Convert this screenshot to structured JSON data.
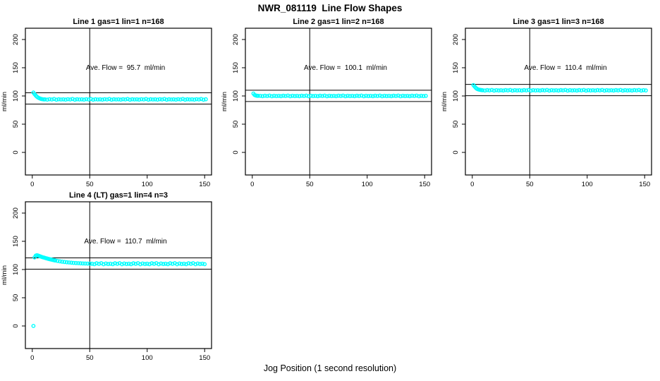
{
  "title": "NWR_081119  Line Flow Shapes",
  "xlabel": "Jog Position (1 second resolution)",
  "colors": {
    "marker": "#00FFFF",
    "axis": "#000000",
    "background": "#FFFFFF"
  },
  "chart_data": [
    {
      "type": "scatter",
      "title": "Line 1 gas=1 lin=1 n=168",
      "annotation": "Ave. Flow =  95.7  ml/min",
      "ave_flow_ml_min": 95.7,
      "ylabel": "ml/min",
      "xlim": [
        -6,
        156
      ],
      "ylim": [
        -40,
        220
      ],
      "xticks": [
        0,
        50,
        100,
        150
      ],
      "yticks": [
        0,
        50,
        100,
        150,
        200
      ],
      "vline_x": 50,
      "hlines": [
        105.7,
        85.7
      ],
      "grid": false,
      "points": [
        [
          1,
          106.0
        ],
        [
          2,
          103.2
        ],
        [
          3,
          100.8
        ],
        [
          4,
          98.8
        ],
        [
          5,
          97.2
        ],
        [
          6,
          96.1
        ],
        [
          7,
          95.2
        ],
        [
          8,
          94.6
        ],
        [
          9,
          94.2
        ],
        [
          10,
          93.9
        ],
        [
          11,
          94.0
        ],
        [
          13,
          93.5
        ],
        [
          15,
          94.3
        ],
        [
          17,
          93.8
        ],
        [
          19,
          94.6
        ],
        [
          21,
          93.4
        ],
        [
          23,
          94.1
        ],
        [
          25,
          93.7
        ],
        [
          27,
          94.0
        ],
        [
          29,
          93.5
        ],
        [
          31,
          94.3
        ],
        [
          33,
          93.8
        ],
        [
          35,
          94.6
        ],
        [
          37,
          93.4
        ],
        [
          39,
          94.1
        ],
        [
          41,
          93.7
        ],
        [
          43,
          94.0
        ],
        [
          45,
          93.5
        ],
        [
          47,
          94.3
        ],
        [
          49,
          93.8
        ],
        [
          51,
          94.6
        ],
        [
          53,
          93.4
        ],
        [
          55,
          94.1
        ],
        [
          57,
          93.7
        ],
        [
          59,
          94.0
        ],
        [
          61,
          93.5
        ],
        [
          63,
          94.3
        ],
        [
          65,
          93.8
        ],
        [
          67,
          94.6
        ],
        [
          69,
          93.4
        ],
        [
          71,
          94.1
        ],
        [
          73,
          93.7
        ],
        [
          75,
          94.0
        ],
        [
          77,
          93.5
        ],
        [
          79,
          94.3
        ],
        [
          81,
          93.8
        ],
        [
          83,
          94.6
        ],
        [
          85,
          93.4
        ],
        [
          87,
          94.1
        ],
        [
          89,
          93.7
        ],
        [
          91,
          94.0
        ],
        [
          93,
          93.5
        ],
        [
          95,
          94.3
        ],
        [
          97,
          93.8
        ],
        [
          99,
          94.6
        ],
        [
          101,
          93.4
        ],
        [
          103,
          94.1
        ],
        [
          105,
          93.7
        ],
        [
          107,
          94.0
        ],
        [
          109,
          93.5
        ],
        [
          111,
          94.3
        ],
        [
          113,
          93.8
        ],
        [
          115,
          94.6
        ],
        [
          117,
          93.4
        ],
        [
          119,
          94.1
        ],
        [
          121,
          93.7
        ],
        [
          123,
          94.0
        ],
        [
          125,
          93.5
        ],
        [
          127,
          94.3
        ],
        [
          129,
          93.8
        ],
        [
          131,
          94.6
        ],
        [
          133,
          93.4
        ],
        [
          135,
          94.1
        ],
        [
          137,
          93.7
        ],
        [
          139,
          94.0
        ],
        [
          141,
          93.5
        ],
        [
          143,
          94.3
        ],
        [
          145,
          93.8
        ],
        [
          147,
          94.6
        ],
        [
          149,
          93.4
        ],
        [
          151,
          94.1
        ]
      ]
    },
    {
      "type": "scatter",
      "title": "Line 2 gas=1 lin=2 n=168",
      "annotation": "Ave. Flow =  100.1  ml/min",
      "ave_flow_ml_min": 100.1,
      "ylabel": "ml/min",
      "xlim": [
        -6,
        156
      ],
      "ylim": [
        -40,
        220
      ],
      "xticks": [
        0,
        50,
        100,
        150
      ],
      "yticks": [
        0,
        50,
        100,
        150,
        200
      ],
      "vline_x": 50,
      "hlines": [
        110.1,
        90.1
      ],
      "grid": false,
      "points": [
        [
          1,
          104.2
        ],
        [
          2,
          101.8
        ],
        [
          3,
          100.9
        ],
        [
          4,
          100.4
        ],
        [
          5,
          100.2
        ],
        [
          7,
          100.1
        ],
        [
          9,
          99.6
        ],
        [
          11,
          100.4
        ],
        [
          13,
          99.9
        ],
        [
          15,
          100.6
        ],
        [
          17,
          99.5
        ],
        [
          19,
          100.2
        ],
        [
          21,
          99.8
        ],
        [
          23,
          100.1
        ],
        [
          25,
          99.6
        ],
        [
          27,
          100.4
        ],
        [
          29,
          99.9
        ],
        [
          31,
          100.6
        ],
        [
          33,
          99.5
        ],
        [
          35,
          100.2
        ],
        [
          37,
          99.8
        ],
        [
          39,
          100.1
        ],
        [
          41,
          99.6
        ],
        [
          43,
          100.4
        ],
        [
          45,
          99.9
        ],
        [
          47,
          100.6
        ],
        [
          49,
          99.5
        ],
        [
          51,
          100.2
        ],
        [
          53,
          99.8
        ],
        [
          55,
          100.1
        ],
        [
          57,
          99.6
        ],
        [
          59,
          100.4
        ],
        [
          61,
          99.9
        ],
        [
          63,
          100.6
        ],
        [
          65,
          99.5
        ],
        [
          67,
          100.2
        ],
        [
          69,
          99.8
        ],
        [
          71,
          100.1
        ],
        [
          73,
          99.6
        ],
        [
          75,
          100.4
        ],
        [
          77,
          99.9
        ],
        [
          79,
          100.6
        ],
        [
          81,
          99.5
        ],
        [
          83,
          100.2
        ],
        [
          85,
          99.8
        ],
        [
          87,
          100.1
        ],
        [
          89,
          99.6
        ],
        [
          91,
          100.4
        ],
        [
          93,
          99.9
        ],
        [
          95,
          100.6
        ],
        [
          97,
          99.5
        ],
        [
          99,
          100.2
        ],
        [
          101,
          99.8
        ],
        [
          103,
          100.1
        ],
        [
          105,
          99.6
        ],
        [
          107,
          100.4
        ],
        [
          109,
          99.9
        ],
        [
          111,
          100.6
        ],
        [
          113,
          99.5
        ],
        [
          115,
          100.2
        ],
        [
          117,
          99.8
        ],
        [
          119,
          100.1
        ],
        [
          121,
          99.6
        ],
        [
          123,
          100.4
        ],
        [
          125,
          99.9
        ],
        [
          127,
          100.6
        ],
        [
          129,
          99.5
        ],
        [
          131,
          100.2
        ],
        [
          133,
          99.8
        ],
        [
          135,
          100.1
        ],
        [
          137,
          99.6
        ],
        [
          139,
          100.4
        ],
        [
          141,
          99.9
        ],
        [
          143,
          100.6
        ],
        [
          145,
          99.5
        ],
        [
          147,
          100.2
        ],
        [
          149,
          99.8
        ],
        [
          151,
          100.1
        ]
      ]
    },
    {
      "type": "scatter",
      "title": "Line 3 gas=1 lin=3 n=168",
      "annotation": "Ave. Flow =  110.4  ml/min",
      "ave_flow_ml_min": 110.4,
      "ylabel": "ml/min",
      "xlim": [
        -6,
        156
      ],
      "ylim": [
        -40,
        220
      ],
      "xticks": [
        0,
        50,
        100,
        150
      ],
      "yticks": [
        0,
        50,
        100,
        150,
        200
      ],
      "vline_x": 50,
      "hlines": [
        120.4,
        100.4
      ],
      "grid": false,
      "points": [
        [
          1,
          119.2
        ],
        [
          2,
          116.8
        ],
        [
          3,
          114.4
        ],
        [
          4,
          112.7
        ],
        [
          5,
          111.7
        ],
        [
          6,
          111.1
        ],
        [
          7,
          110.7
        ],
        [
          8,
          110.4
        ],
        [
          9,
          110.1
        ],
        [
          11,
          109.6
        ],
        [
          13,
          110.4
        ],
        [
          15,
          109.9
        ],
        [
          17,
          110.6
        ],
        [
          19,
          109.5
        ],
        [
          21,
          110.2
        ],
        [
          23,
          109.8
        ],
        [
          25,
          110.1
        ],
        [
          27,
          109.6
        ],
        [
          29,
          110.4
        ],
        [
          31,
          109.9
        ],
        [
          33,
          110.6
        ],
        [
          35,
          109.5
        ],
        [
          37,
          110.2
        ],
        [
          39,
          109.8
        ],
        [
          41,
          110.1
        ],
        [
          43,
          109.6
        ],
        [
          45,
          110.4
        ],
        [
          47,
          109.9
        ],
        [
          49,
          110.6
        ],
        [
          51,
          109.5
        ],
        [
          53,
          110.2
        ],
        [
          55,
          109.8
        ],
        [
          57,
          110.1
        ],
        [
          59,
          109.6
        ],
        [
          61,
          110.4
        ],
        [
          63,
          109.9
        ],
        [
          65,
          110.6
        ],
        [
          67,
          109.5
        ],
        [
          69,
          110.2
        ],
        [
          71,
          109.8
        ],
        [
          73,
          110.1
        ],
        [
          75,
          109.6
        ],
        [
          77,
          110.4
        ],
        [
          79,
          109.9
        ],
        [
          81,
          110.6
        ],
        [
          83,
          109.5
        ],
        [
          85,
          110.2
        ],
        [
          87,
          109.8
        ],
        [
          89,
          110.1
        ],
        [
          91,
          109.6
        ],
        [
          93,
          110.4
        ],
        [
          95,
          109.9
        ],
        [
          97,
          110.6
        ],
        [
          99,
          109.5
        ],
        [
          101,
          110.2
        ],
        [
          103,
          109.8
        ],
        [
          105,
          110.1
        ],
        [
          107,
          109.6
        ],
        [
          109,
          110.4
        ],
        [
          111,
          109.9
        ],
        [
          113,
          110.6
        ],
        [
          115,
          109.5
        ],
        [
          117,
          110.2
        ],
        [
          119,
          109.8
        ],
        [
          121,
          110.1
        ],
        [
          123,
          109.6
        ],
        [
          125,
          110.4
        ],
        [
          127,
          109.9
        ],
        [
          129,
          110.6
        ],
        [
          131,
          109.5
        ],
        [
          133,
          110.2
        ],
        [
          135,
          109.8
        ],
        [
          137,
          110.1
        ],
        [
          139,
          109.6
        ],
        [
          141,
          110.4
        ],
        [
          143,
          109.9
        ],
        [
          145,
          110.6
        ],
        [
          147,
          109.5
        ],
        [
          149,
          110.2
        ],
        [
          151,
          109.8
        ]
      ]
    },
    {
      "type": "scatter",
      "title": "Line 4 (LT) gas=1 lin=4 n=3",
      "annotation": "Ave. Flow =  110.7  ml/min",
      "ave_flow_ml_min": 110.7,
      "ylabel": "ml/min",
      "xlim": [
        -6,
        156
      ],
      "ylim": [
        -40,
        220
      ],
      "xticks": [
        0,
        50,
        100,
        150
      ],
      "yticks": [
        0,
        50,
        100,
        150,
        200
      ],
      "vline_x": 50,
      "hlines": [
        120.7,
        100.7
      ],
      "grid": false,
      "points": [
        [
          1,
          0
        ],
        [
          2,
          121.5
        ],
        [
          3,
          124.6
        ],
        [
          4,
          125.2
        ],
        [
          5,
          124.7
        ],
        [
          6,
          124.0
        ],
        [
          7,
          123.2
        ],
        [
          8,
          122.5
        ],
        [
          9,
          121.8
        ],
        [
          10,
          121.2
        ],
        [
          11,
          120.6
        ],
        [
          12,
          120.0
        ],
        [
          13,
          119.5
        ],
        [
          14,
          118.9
        ],
        [
          15,
          118.4
        ],
        [
          16,
          117.9
        ],
        [
          17,
          117.4
        ],
        [
          18,
          116.9
        ],
        [
          19,
          116.5
        ],
        [
          20,
          116.0
        ],
        [
          22,
          115.2
        ],
        [
          24,
          114.5
        ],
        [
          26,
          113.9
        ],
        [
          28,
          113.4
        ],
        [
          30,
          112.9
        ],
        [
          32,
          112.5
        ],
        [
          34,
          112.1
        ],
        [
          36,
          111.8
        ],
        [
          38,
          111.5
        ],
        [
          40,
          111.2
        ],
        [
          42,
          111.0
        ],
        [
          44,
          110.8
        ],
        [
          46,
          110.6
        ],
        [
          48,
          110.5
        ],
        [
          50,
          110.4
        ],
        [
          52,
          110.3
        ],
        [
          54,
          109.5
        ],
        [
          56,
          111.0
        ],
        [
          58,
          110.0
        ],
        [
          60,
          111.3
        ],
        [
          62,
          109.4
        ],
        [
          64,
          110.6
        ],
        [
          66,
          109.8
        ],
        [
          68,
          110.3
        ],
        [
          70,
          109.5
        ],
        [
          72,
          111.0
        ],
        [
          74,
          110.0
        ],
        [
          76,
          111.3
        ],
        [
          78,
          109.4
        ],
        [
          80,
          110.6
        ],
        [
          82,
          109.8
        ],
        [
          84,
          110.3
        ],
        [
          86,
          109.5
        ],
        [
          88,
          111.0
        ],
        [
          90,
          110.0
        ],
        [
          92,
          111.3
        ],
        [
          94,
          109.4
        ],
        [
          96,
          110.6
        ],
        [
          98,
          109.8
        ],
        [
          100,
          110.3
        ],
        [
          102,
          109.5
        ],
        [
          104,
          111.0
        ],
        [
          106,
          110.0
        ],
        [
          108,
          111.3
        ],
        [
          110,
          109.4
        ],
        [
          112,
          110.6
        ],
        [
          114,
          109.8
        ],
        [
          116,
          110.3
        ],
        [
          118,
          109.5
        ],
        [
          120,
          111.0
        ],
        [
          122,
          110.0
        ],
        [
          124,
          111.3
        ],
        [
          126,
          109.4
        ],
        [
          128,
          110.6
        ],
        [
          130,
          109.8
        ],
        [
          132,
          110.3
        ],
        [
          134,
          109.5
        ],
        [
          136,
          111.0
        ],
        [
          138,
          110.0
        ],
        [
          140,
          111.3
        ],
        [
          142,
          109.4
        ],
        [
          144,
          110.6
        ],
        [
          146,
          109.8
        ],
        [
          148,
          110.3
        ],
        [
          150,
          109.5
        ]
      ]
    }
  ]
}
